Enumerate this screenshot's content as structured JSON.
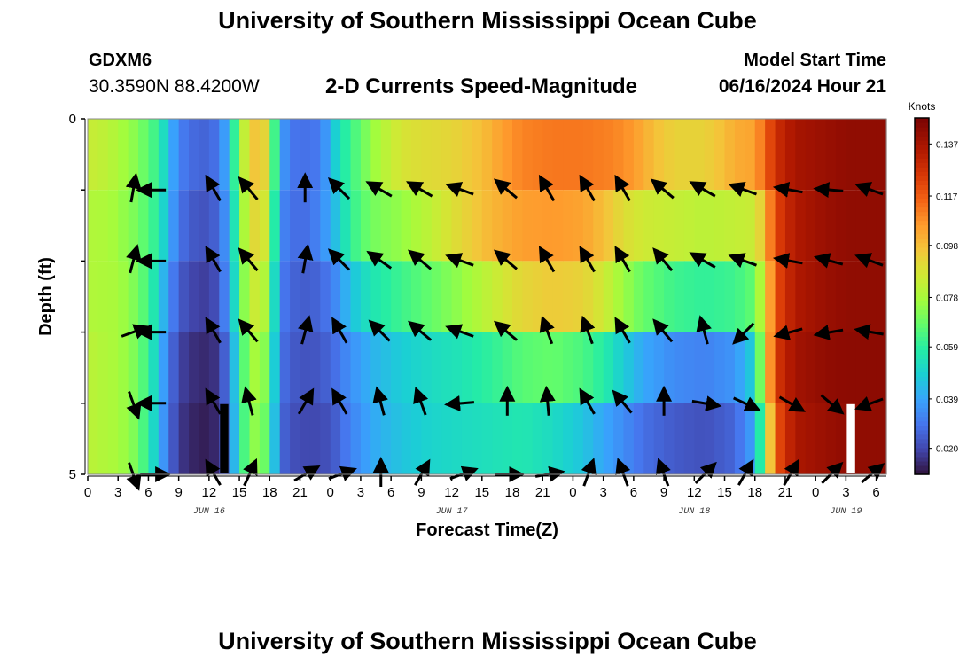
{
  "header": {
    "title": "University of Southern Mississippi Ocean Cube",
    "station_id": "GDXM6",
    "station_coords": "30.3590N  88.4200W",
    "subtitle": "2-D Currents Speed-Magnitude",
    "model_start_label": "Model Start Time",
    "model_start_value": "06/16/2024 Hour 21"
  },
  "footer": {
    "title": "University of Southern Mississippi Ocean Cube"
  },
  "chart_data": {
    "type": "heatmap",
    "title": "2-D Currents Speed-Magnitude",
    "xlabel": "Forecast Time(Z)",
    "ylabel": "Depth (ft)",
    "x_start": "2024-06-16 00Z",
    "x_step_hours": 1,
    "x_tick_labels": [
      "0",
      "3",
      "6",
      "9",
      "12",
      "15",
      "18",
      "21",
      "0",
      "3",
      "6",
      "9",
      "12",
      "15",
      "18",
      "21",
      "0",
      "3",
      "6",
      "9",
      "12",
      "15",
      "18",
      "21",
      "0",
      "3",
      "6"
    ],
    "date_labels": [
      {
        "label": "JUN 16",
        "hour": 12
      },
      {
        "label": "JUN 17",
        "hour": 36
      },
      {
        "label": "JUN 18",
        "hour": 60
      },
      {
        "label": "JUN 19",
        "hour": 75
      }
    ],
    "y_tick_labels": [
      "0",
      "5"
    ],
    "ylim": [
      0,
      5
    ],
    "depth_rows": [
      0.5,
      1.5,
      2.5,
      3.5,
      4.5
    ],
    "colorbar": {
      "unit": "Knots",
      "ticks": [
        "0.020",
        "0.039",
        "0.059",
        "0.078",
        "0.098",
        "0.117",
        "0.137"
      ],
      "range": [
        0.01,
        0.147
      ],
      "colormap": "turbo"
    },
    "speed_profiles": [
      [
        [
          0,
          0.085
        ],
        [
          2,
          0.082
        ],
        [
          5,
          0.072
        ],
        [
          7,
          0.06
        ],
        [
          8,
          0.045
        ],
        [
          9,
          0.032
        ],
        [
          10,
          0.028
        ],
        [
          11,
          0.026
        ],
        [
          12,
          0.026
        ],
        [
          13,
          0.03
        ],
        [
          14,
          0.045
        ],
        [
          15,
          0.075
        ],
        [
          16,
          0.092
        ],
        [
          17,
          0.1
        ],
        [
          18,
          0.085
        ],
        [
          19,
          0.04
        ],
        [
          20,
          0.03
        ],
        [
          21,
          0.028
        ],
        [
          23,
          0.03
        ],
        [
          25,
          0.055
        ],
        [
          27,
          0.068
        ],
        [
          29,
          0.08
        ],
        [
          31,
          0.088
        ],
        [
          33,
          0.09
        ],
        [
          36,
          0.092
        ],
        [
          39,
          0.098
        ],
        [
          41,
          0.105
        ],
        [
          43,
          0.11
        ],
        [
          46,
          0.112
        ],
        [
          49,
          0.112
        ],
        [
          52,
          0.11
        ],
        [
          54,
          0.106
        ],
        [
          56,
          0.098
        ],
        [
          58,
          0.093
        ],
        [
          61,
          0.093
        ],
        [
          63,
          0.098
        ],
        [
          64,
          0.102
        ],
        [
          66,
          0.104
        ],
        [
          67,
          0.116
        ],
        [
          68,
          0.128
        ],
        [
          70,
          0.137
        ],
        [
          73,
          0.14
        ],
        [
          75,
          0.142
        ],
        [
          78,
          0.142
        ]
      ],
      [
        [
          0,
          0.08
        ],
        [
          2,
          0.079
        ],
        [
          5,
          0.07
        ],
        [
          7,
          0.058
        ],
        [
          8,
          0.042
        ],
        [
          9,
          0.03
        ],
        [
          10,
          0.024
        ],
        [
          12,
          0.022
        ],
        [
          13,
          0.028
        ],
        [
          14,
          0.04
        ],
        [
          15,
          0.07
        ],
        [
          16,
          0.088
        ],
        [
          17,
          0.094
        ],
        [
          18,
          0.08
        ],
        [
          19,
          0.035
        ],
        [
          20,
          0.028
        ],
        [
          22,
          0.028
        ],
        [
          24,
          0.04
        ],
        [
          26,
          0.06
        ],
        [
          28,
          0.07
        ],
        [
          31,
          0.075
        ],
        [
          34,
          0.083
        ],
        [
          37,
          0.092
        ],
        [
          40,
          0.1
        ],
        [
          43,
          0.105
        ],
        [
          46,
          0.106
        ],
        [
          49,
          0.104
        ],
        [
          51,
          0.098
        ],
        [
          53,
          0.09
        ],
        [
          55,
          0.086
        ],
        [
          58,
          0.084
        ],
        [
          61,
          0.082
        ],
        [
          63,
          0.083
        ],
        [
          66,
          0.085
        ],
        [
          67,
          0.1
        ],
        [
          68,
          0.122
        ],
        [
          70,
          0.135
        ],
        [
          73,
          0.14
        ],
        [
          75,
          0.142
        ],
        [
          78,
          0.142
        ]
      ],
      [
        [
          0,
          0.08
        ],
        [
          3,
          0.078
        ],
        [
          5,
          0.07
        ],
        [
          6,
          0.062
        ],
        [
          7,
          0.05
        ],
        [
          8,
          0.035
        ],
        [
          9,
          0.025
        ],
        [
          10,
          0.02
        ],
        [
          12,
          0.018
        ],
        [
          13,
          0.024
        ],
        [
          14,
          0.038
        ],
        [
          15,
          0.065
        ],
        [
          16,
          0.082
        ],
        [
          17,
          0.088
        ],
        [
          18,
          0.072
        ],
        [
          19,
          0.032
        ],
        [
          20,
          0.026
        ],
        [
          22,
          0.024
        ],
        [
          24,
          0.03
        ],
        [
          26,
          0.045
        ],
        [
          28,
          0.055
        ],
        [
          31,
          0.062
        ],
        [
          34,
          0.068
        ],
        [
          37,
          0.075
        ],
        [
          40,
          0.084
        ],
        [
          43,
          0.092
        ],
        [
          46,
          0.095
        ],
        [
          49,
          0.093
        ],
        [
          51,
          0.086
        ],
        [
          53,
          0.076
        ],
        [
          55,
          0.068
        ],
        [
          58,
          0.062
        ],
        [
          61,
          0.06
        ],
        [
          64,
          0.062
        ],
        [
          66,
          0.068
        ],
        [
          67,
          0.09
        ],
        [
          68,
          0.12
        ],
        [
          70,
          0.135
        ],
        [
          73,
          0.14
        ],
        [
          75,
          0.142
        ],
        [
          78,
          0.142
        ]
      ],
      [
        [
          0,
          0.082
        ],
        [
          3,
          0.078
        ],
        [
          5,
          0.07
        ],
        [
          6,
          0.06
        ],
        [
          7,
          0.046
        ],
        [
          8,
          0.03
        ],
        [
          9,
          0.02
        ],
        [
          10,
          0.016
        ],
        [
          12,
          0.014
        ],
        [
          13,
          0.018
        ],
        [
          14,
          0.032
        ],
        [
          15,
          0.058
        ],
        [
          16,
          0.075
        ],
        [
          17,
          0.08
        ],
        [
          18,
          0.066
        ],
        [
          19,
          0.03
        ],
        [
          20,
          0.024
        ],
        [
          22,
          0.022
        ],
        [
          24,
          0.026
        ],
        [
          26,
          0.035
        ],
        [
          28,
          0.042
        ],
        [
          31,
          0.048
        ],
        [
          34,
          0.052
        ],
        [
          37,
          0.055
        ],
        [
          40,
          0.06
        ],
        [
          43,
          0.066
        ],
        [
          46,
          0.068
        ],
        [
          49,
          0.064
        ],
        [
          51,
          0.058
        ],
        [
          53,
          0.048
        ],
        [
          55,
          0.04
        ],
        [
          58,
          0.034
        ],
        [
          61,
          0.032
        ],
        [
          64,
          0.036
        ],
        [
          66,
          0.05
        ],
        [
          67,
          0.09
        ],
        [
          68,
          0.125
        ],
        [
          70,
          0.138
        ],
        [
          73,
          0.142
        ],
        [
          75,
          0.143
        ],
        [
          78,
          0.143
        ]
      ],
      [
        [
          0,
          0.082
        ],
        [
          3,
          0.078
        ],
        [
          5,
          0.07
        ],
        [
          6,
          0.058
        ],
        [
          7,
          0.044
        ],
        [
          8,
          0.028
        ],
        [
          9,
          0.018
        ],
        [
          10,
          0.014
        ],
        [
          12,
          0.012
        ],
        [
          13,
          0.016
        ],
        [
          14,
          0.03
        ],
        [
          15,
          0.056
        ],
        [
          16,
          0.072
        ],
        [
          17,
          0.076
        ],
        [
          18,
          0.062
        ],
        [
          19,
          0.028
        ],
        [
          20,
          0.022
        ],
        [
          22,
          0.02
        ],
        [
          24,
          0.022
        ],
        [
          26,
          0.032
        ],
        [
          28,
          0.04
        ],
        [
          31,
          0.046
        ],
        [
          34,
          0.05
        ],
        [
          37,
          0.052
        ],
        [
          40,
          0.054
        ],
        [
          43,
          0.056
        ],
        [
          46,
          0.052
        ],
        [
          49,
          0.046
        ],
        [
          51,
          0.04
        ],
        [
          53,
          0.034
        ],
        [
          55,
          0.028
        ],
        [
          58,
          0.024
        ],
        [
          61,
          0.022
        ],
        [
          64,
          0.026
        ],
        [
          66,
          0.04
        ],
        [
          67,
          0.075
        ],
        [
          68,
          0.118
        ],
        [
          70,
          0.136
        ],
        [
          73,
          0.14
        ],
        [
          75,
          0.142
        ],
        [
          78,
          0.142
        ]
      ]
    ],
    "direction_hours": [
      4.5,
      6.5,
      12.5,
      16,
      21.5,
      25,
      29,
      33,
      37,
      41.5,
      45.5,
      49.5,
      53,
      57,
      61,
      65,
      69.5,
      73.5,
      77.5
    ],
    "directions_deg": [
      [
        10,
        270,
        330,
        320,
        0,
        315,
        300,
        300,
        290,
        310,
        330,
        330,
        330,
        310,
        300,
        290,
        280,
        275,
        290
      ],
      [
        15,
        270,
        330,
        320,
        10,
        315,
        305,
        310,
        290,
        310,
        330,
        330,
        330,
        320,
        300,
        290,
        280,
        285,
        290
      ],
      [
        70,
        270,
        330,
        320,
        15,
        330,
        315,
        310,
        290,
        310,
        340,
        340,
        330,
        320,
        345,
        225,
        255,
        260,
        280
      ],
      [
        160,
        270,
        330,
        345,
        30,
        330,
        345,
        340,
        265,
        0,
        355,
        330,
        320,
        0,
        100,
        115,
        120,
        130,
        250
      ],
      [
        160,
        90,
        330,
        25,
        60,
        70,
        0,
        30,
        70,
        90,
        80,
        20,
        340,
        340,
        45,
        30,
        30,
        45,
        50
      ]
    ],
    "missing_cells": [
      {
        "hour": 13,
        "depth": 4.5,
        "color": "#000000"
      },
      {
        "hour": 75,
        "depth": 4.5,
        "color": "#ffffff"
      }
    ],
    "grid": false
  }
}
